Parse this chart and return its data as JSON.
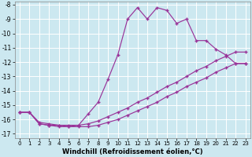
{
  "xlabel": "Windchill (Refroidissement éolien,°C)",
  "bg_color": "#cce8f0",
  "line_color": "#993399",
  "xlim": [
    -0.5,
    23.5
  ],
  "ylim": [
    -17.3,
    -7.8
  ],
  "yticks": [
    -17,
    -16,
    -15,
    -14,
    -13,
    -12,
    -11,
    -10,
    -9,
    -8
  ],
  "xticks": [
    0,
    1,
    2,
    3,
    4,
    5,
    6,
    7,
    8,
    9,
    10,
    11,
    12,
    13,
    14,
    15,
    16,
    17,
    18,
    19,
    20,
    21,
    22,
    23
  ],
  "line_wave_x": [
    0,
    1,
    2,
    3,
    4,
    5,
    6,
    7,
    8,
    9,
    10,
    11,
    12,
    13,
    14,
    15,
    16,
    17,
    18,
    19,
    20,
    21,
    22,
    23
  ],
  "line_wave_y": [
    -15.5,
    -15.5,
    -16.3,
    -16.4,
    -16.4,
    -16.5,
    -16.4,
    -15.6,
    -14.8,
    -13.2,
    -11.5,
    -9.0,
    -8.2,
    -9.0,
    -8.2,
    -8.4,
    -9.3,
    -9.0,
    -10.5,
    -10.5,
    -11.1,
    -11.5,
    -12.1,
    -12.1
  ],
  "line_diag1_x": [
    0,
    1,
    2,
    3,
    4,
    5,
    6,
    7,
    8,
    9,
    10,
    11,
    12,
    13,
    14,
    15,
    16,
    17,
    18,
    19,
    20,
    21,
    22,
    23
  ],
  "line_diag1_y": [
    -15.5,
    -15.5,
    -16.3,
    -16.4,
    -16.5,
    -16.5,
    -16.5,
    -16.5,
    -16.4,
    -16.2,
    -16.0,
    -15.7,
    -15.4,
    -15.1,
    -14.8,
    -14.4,
    -14.1,
    -13.7,
    -13.4,
    -13.1,
    -12.7,
    -12.4,
    -12.1,
    -12.1
  ],
  "line_diag2_x": [
    0,
    1,
    2,
    3,
    4,
    5,
    6,
    7,
    8,
    9,
    10,
    11,
    12,
    13,
    14,
    15,
    16,
    17,
    18,
    19,
    20,
    21,
    22,
    23
  ],
  "line_diag2_y": [
    -15.5,
    -15.5,
    -16.2,
    -16.3,
    -16.4,
    -16.4,
    -16.4,
    -16.3,
    -16.1,
    -15.8,
    -15.5,
    -15.2,
    -14.8,
    -14.5,
    -14.1,
    -13.7,
    -13.4,
    -13.0,
    -12.6,
    -12.3,
    -11.9,
    -11.6,
    -11.3,
    -11.3
  ]
}
